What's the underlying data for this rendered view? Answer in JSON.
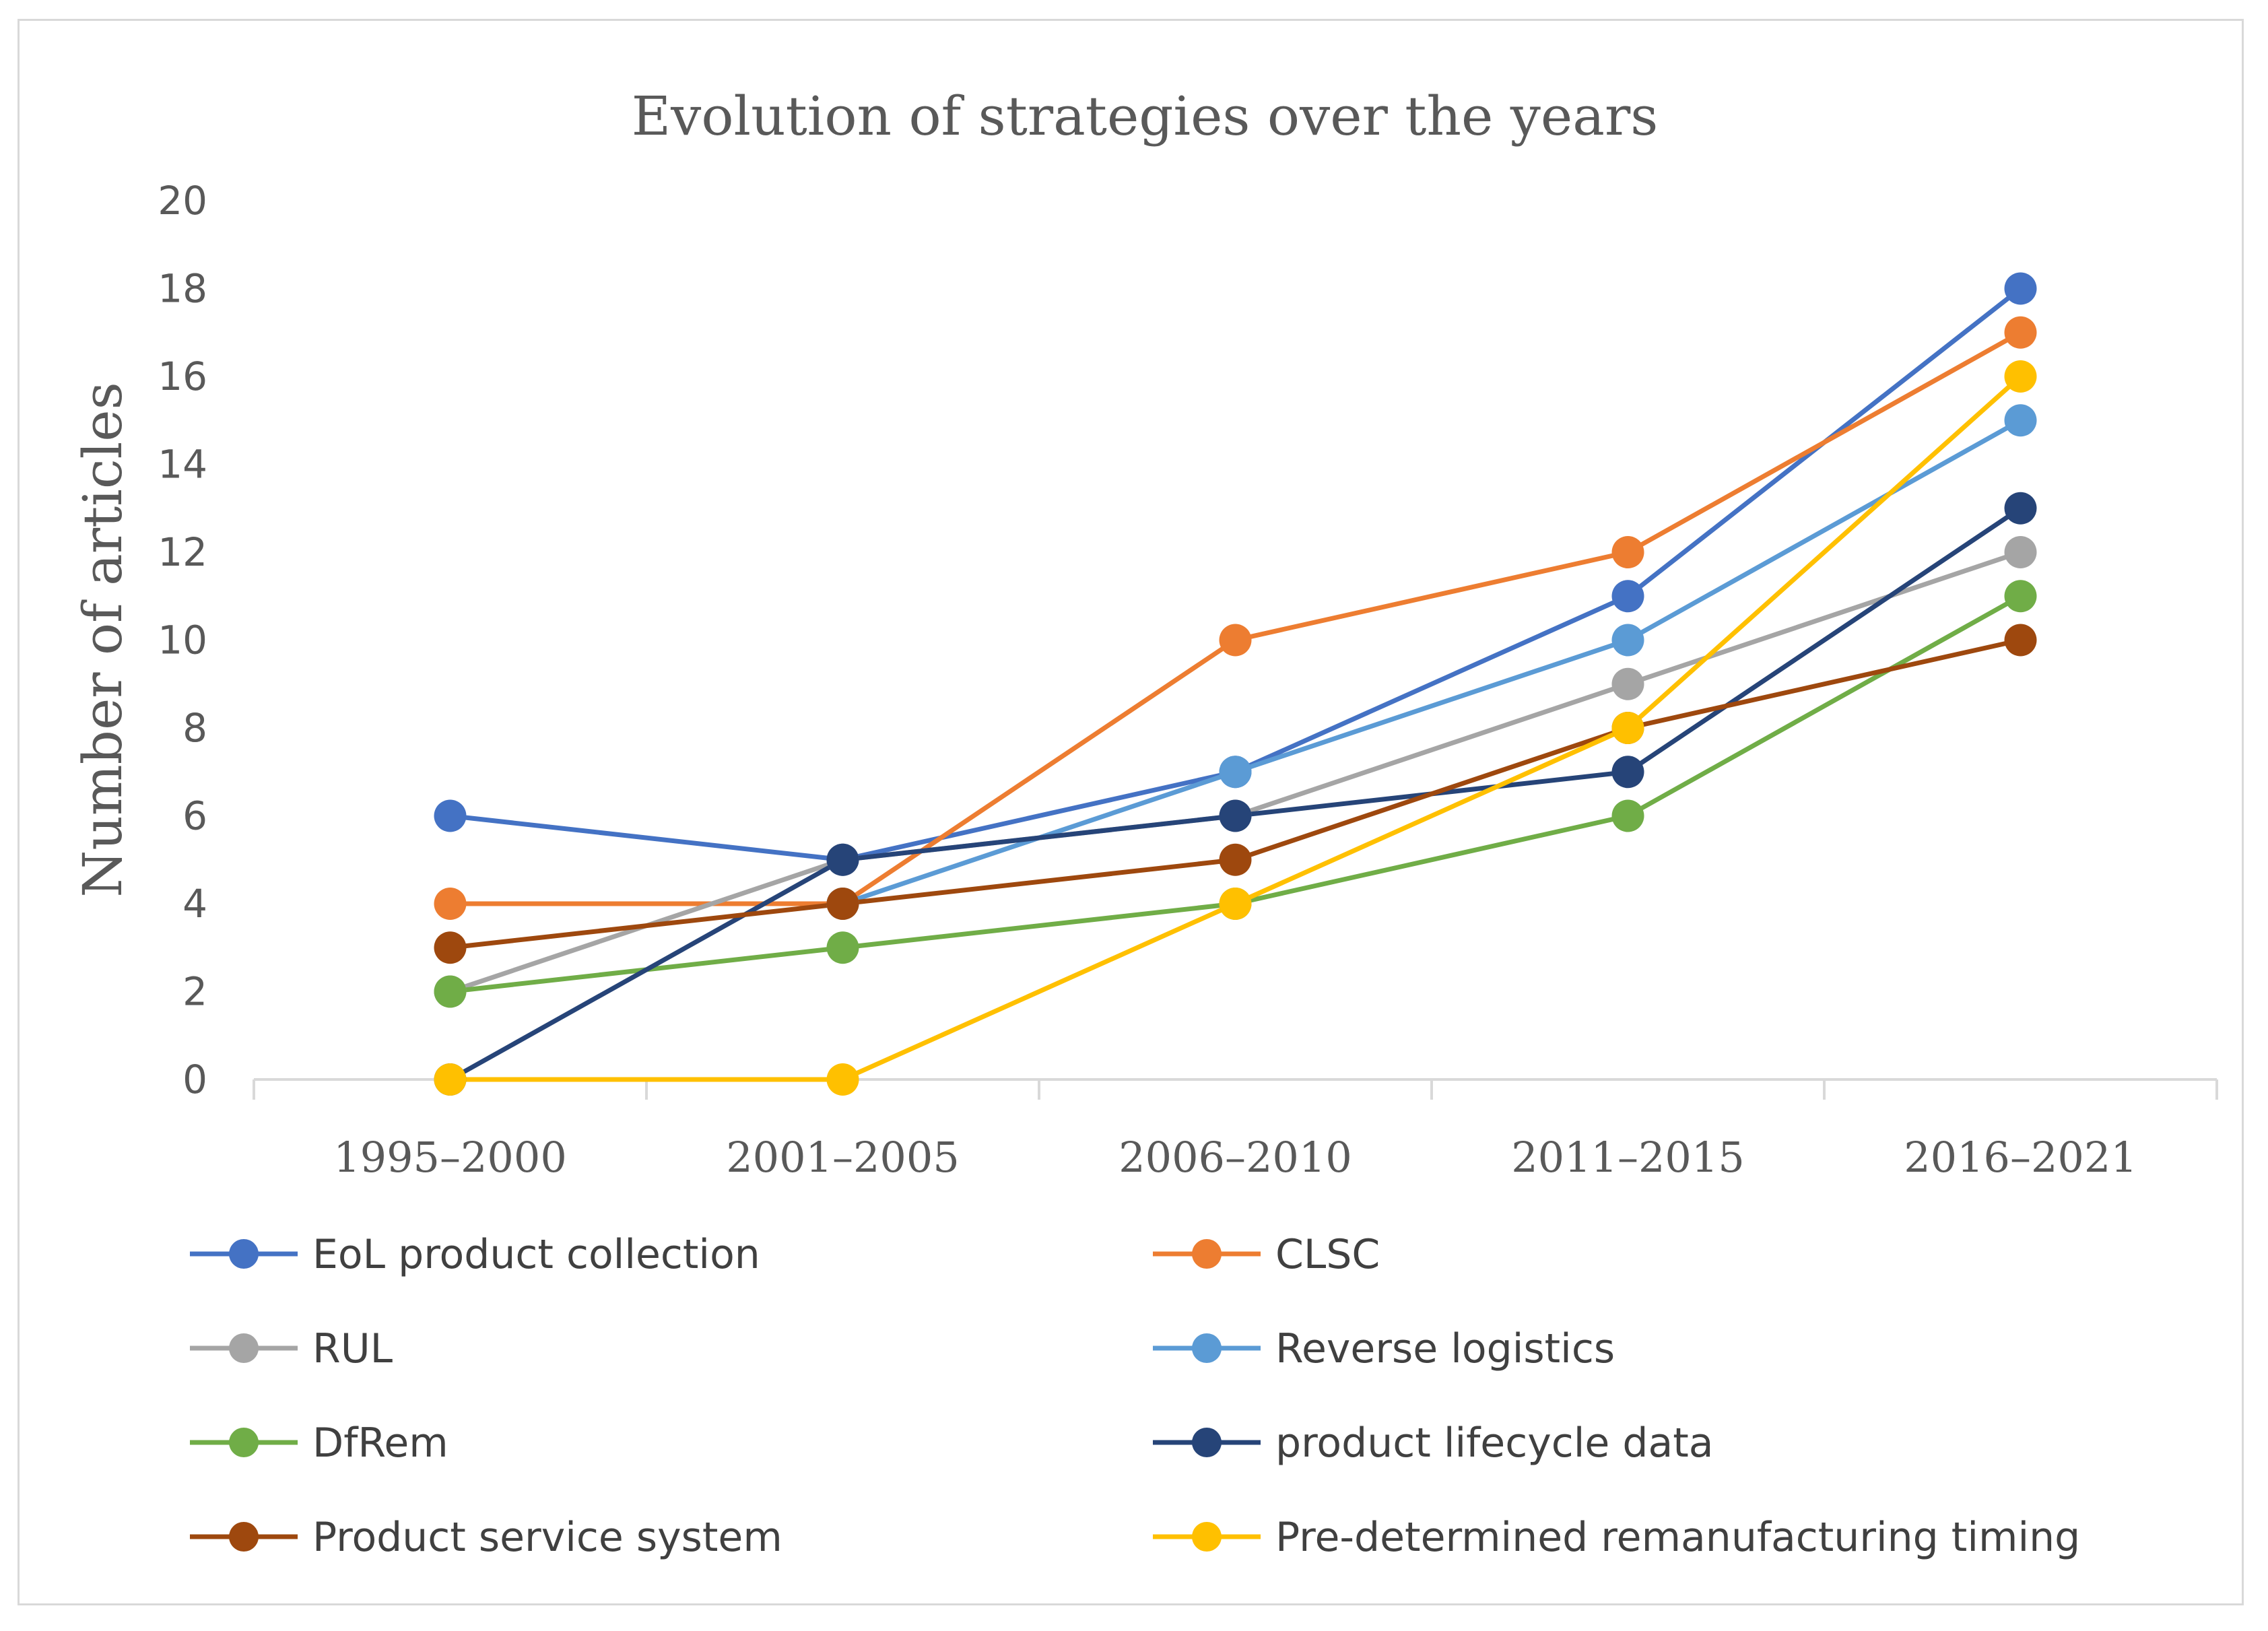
{
  "chart_data": {
    "type": "line",
    "title": "Evolution of strategies over the years",
    "xlabel": "",
    "ylabel": "Number of articles",
    "ylim": [
      0,
      20
    ],
    "yticks": [
      0,
      2,
      4,
      6,
      8,
      10,
      12,
      14,
      16,
      18,
      20
    ],
    "categories": [
      "1995–2000",
      "2001–2005",
      "2006–2010",
      "2011–2015",
      "2016–2021"
    ],
    "legend_position": "bottom",
    "grid": false,
    "series": [
      {
        "name": "EoL product collection",
        "color": "#4472C4",
        "values": [
          6,
          5,
          7,
          11,
          18
        ]
      },
      {
        "name": "CLSC",
        "color": "#ED7D31",
        "values": [
          4,
          4,
          10,
          12,
          17
        ]
      },
      {
        "name": "RUL",
        "color": "#A5A5A5",
        "values": [
          2,
          5,
          6,
          9,
          12
        ]
      },
      {
        "name": "Reverse logistics",
        "color": "#5B9BD5",
        "values": [
          null,
          4,
          7,
          10,
          15
        ]
      },
      {
        "name": "DfRem",
        "color": "#70AD47",
        "values": [
          2,
          3,
          4,
          6,
          11
        ]
      },
      {
        "name": "product lifecycle data",
        "color": "#264478",
        "values": [
          0,
          5,
          6,
          7,
          13
        ]
      },
      {
        "name": "Product service system",
        "color": "#9E480E",
        "values": [
          3,
          4,
          5,
          8,
          10
        ]
      },
      {
        "name": "Pre-determined remanufacturing timing",
        "color": "#FFC000",
        "values": [
          0,
          0,
          4,
          8,
          16
        ]
      }
    ]
  }
}
